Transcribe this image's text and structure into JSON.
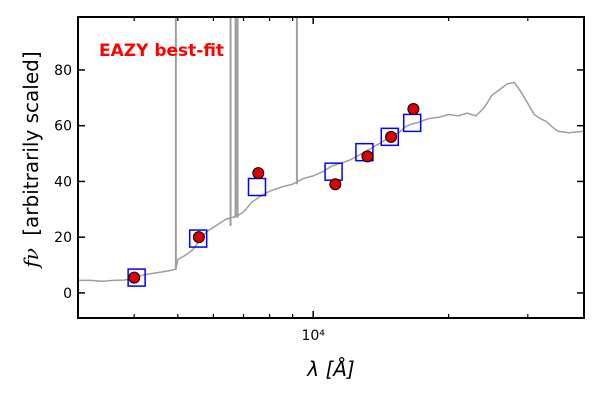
{
  "chart_data": {
    "type": "scatter",
    "annotation": "EAZY best-fit",
    "annotation_color": "#ff0000",
    "xlabel": "λ [Å]",
    "ylabel_symbol": "fν",
    "ylabel": "[arbitrarily scaled]",
    "x_scale": "log",
    "xlim": [
      3000,
      40000
    ],
    "ylim": [
      -9,
      99
    ],
    "yticks": [
      0,
      20,
      40,
      60,
      80
    ],
    "ytick_labels": [
      "0",
      "20",
      "40",
      "60",
      "80"
    ],
    "xtick_major": [
      10000
    ],
    "xtick_major_labels": [
      "10⁴"
    ],
    "xtick_minor": [
      4000,
      5000,
      6000,
      7000,
      8000,
      9000,
      20000,
      30000
    ],
    "grid": false,
    "colors": {
      "template": "#9e9e9e",
      "model_box": "#0000ff",
      "observed_fill": "#dd0000",
      "observed_edge": "#000000",
      "frame": "#000000"
    },
    "series": [
      {
        "marker": "open-square",
        "x": [
          4050,
          5550,
          7500,
          11100,
          13000,
          14800,
          16600
        ],
        "y": [
          5.5,
          19.5,
          38.0,
          43.5,
          50.5,
          56.0,
          61.0
        ]
      },
      {
        "marker": "filled-circle",
        "x": [
          4000,
          5570,
          7550,
          11200,
          13200,
          14900,
          16700
        ],
        "y": [
          5.5,
          20.0,
          43.0,
          39.0,
          49.0,
          56.0,
          66.0
        ]
      }
    ],
    "template_curve": {
      "x": [
        3000,
        3200,
        3400,
        3600,
        3800,
        4000,
        4200,
        4400,
        4600,
        4800,
        4950,
        5000,
        5200,
        5400,
        5600,
        5800,
        6000,
        6200,
        6400,
        6600,
        6800,
        7000,
        7300,
        7600,
        8000,
        8500,
        9000,
        9500,
        10000,
        10500,
        11000,
        11500,
        12000,
        12500,
        13000,
        13500,
        14000,
        14500,
        15000,
        15500,
        16000,
        16500,
        17000,
        18000,
        19000,
        20000,
        21000,
        22000,
        23000,
        24000,
        25000,
        26000,
        27000,
        28000,
        29000,
        30000,
        31000,
        32000,
        33000,
        34000,
        35000,
        37000,
        40000
      ],
      "y": [
        4.5,
        4.5,
        4.2,
        4.5,
        4.6,
        5.3,
        6.5,
        7.0,
        7.5,
        8.0,
        8.5,
        12.0,
        13.5,
        15.5,
        19.0,
        22.0,
        23.5,
        25.0,
        26.5,
        27.0,
        27.8,
        29.0,
        32.5,
        34.5,
        36.5,
        38.0,
        39.0,
        41.0,
        42.0,
        43.5,
        45.5,
        46.5,
        47.5,
        49.0,
        50.5,
        52.0,
        53.5,
        55.0,
        56.5,
        57.5,
        59.5,
        60.5,
        61.0,
        62.5,
        63.0,
        64.0,
        63.5,
        64.5,
        63.5,
        66.5,
        71.0,
        73.0,
        75.0,
        75.5,
        72.0,
        68.0,
        64.0,
        62.5,
        61.5,
        59.5,
        58.0,
        57.5,
        58.0
      ]
    },
    "template_spikes": [
      {
        "x": 4950,
        "y_low": 8.5,
        "y_high": 99
      },
      {
        "x": 6550,
        "y_low": 24.0,
        "y_high": 99
      },
      {
        "x": 6720,
        "y_low": 27.0,
        "y_high": 99
      },
      {
        "x": 6790,
        "y_low": 27.0,
        "y_high": 99
      },
      {
        "x": 9200,
        "y_low": 39.0,
        "y_high": 99
      }
    ]
  }
}
